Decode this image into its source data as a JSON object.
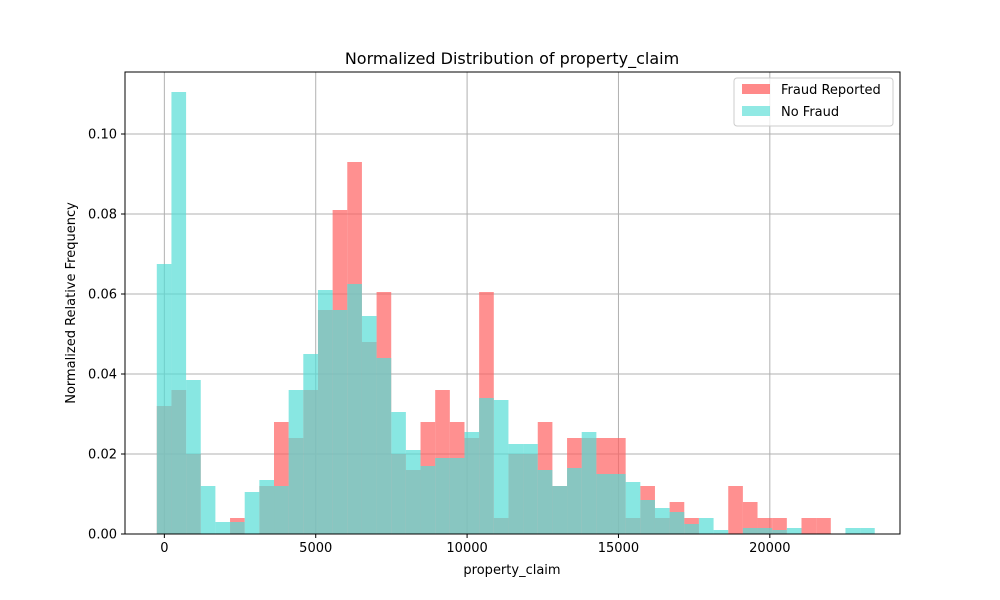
{
  "chart_data": {
    "type": "bar",
    "title": "Normalized Distribution of property_claim",
    "xlabel": "property_claim",
    "ylabel": "Normalized Relative Frequency",
    "xlim": [
      -1300,
      24300
    ],
    "ylim": [
      0,
      0.1155
    ],
    "x_ticks": [
      0,
      5000,
      10000,
      15000,
      20000
    ],
    "y_ticks": [
      0.0,
      0.02,
      0.04,
      0.06,
      0.08,
      0.1
    ],
    "x_tick_labels": [
      "0",
      "5000",
      "10000",
      "15000",
      "20000"
    ],
    "y_tick_labels": [
      "0.00",
      "0.02",
      "0.04",
      "0.06",
      "0.08",
      "0.10"
    ],
    "grid": true,
    "legend_position": "top-right",
    "colors": {
      "fraud": "#ff6161",
      "no_fraud": "#56ddd6",
      "grid": "#b0b0b0",
      "frame": "#000000"
    },
    "series": [
      {
        "name": "Fraud Reported",
        "bin_edges": [
          -250,
          234,
          718,
          1202,
          1686,
          2170,
          2654,
          3138,
          3622,
          4106,
          4590,
          5074,
          5558,
          6042,
          6526,
          7010,
          7494,
          7978,
          8462,
          8946,
          9430,
          9914,
          10398,
          10882,
          11366,
          11850,
          12334,
          12818,
          13302,
          13786,
          14270,
          14754,
          15238,
          15722,
          16206,
          16690,
          17174,
          17658,
          18142,
          18626,
          19110,
          19594,
          20078,
          20562,
          21046,
          21530,
          22014
        ],
        "values": [
          0.032,
          0.036,
          0.02,
          0,
          0,
          0.004,
          0,
          0.012,
          0.028,
          0.024,
          0.036,
          0.056,
          0.081,
          0.093,
          0.048,
          0.0605,
          0.02,
          0.016,
          0.028,
          0.036,
          0.028,
          0.024,
          0.0605,
          0.004,
          0.02,
          0.02,
          0.028,
          0.012,
          0.024,
          0.024,
          0.024,
          0.024,
          0.004,
          0.012,
          0.004,
          0.008,
          0.004,
          0,
          0,
          0.012,
          0.008,
          0.004,
          0.004,
          0,
          0.004,
          0.004
        ]
      },
      {
        "name": "No Fraud",
        "bin_edges": [
          -250,
          234,
          718,
          1202,
          1686,
          2170,
          2654,
          3138,
          3622,
          4106,
          4590,
          5074,
          5558,
          6042,
          6526,
          7010,
          7494,
          7978,
          8462,
          8946,
          9430,
          9914,
          10398,
          10882,
          11366,
          11850,
          12334,
          12818,
          13302,
          13786,
          14270,
          14754,
          15238,
          15722,
          16206,
          16690,
          17174,
          17658,
          18142,
          18626,
          19110,
          19594,
          20078,
          20562,
          21046,
          21530,
          22014,
          22498,
          22982,
          23466
        ],
        "values": [
          0.0675,
          0.1105,
          0.0385,
          0.012,
          0.003,
          0.003,
          0.0105,
          0.0135,
          0.012,
          0.036,
          0.045,
          0.061,
          0.056,
          0.0625,
          0.0545,
          0.044,
          0.0305,
          0.021,
          0.017,
          0.019,
          0.019,
          0.0255,
          0.034,
          0.0335,
          0.0225,
          0.0225,
          0.016,
          0.012,
          0.0165,
          0.0255,
          0.015,
          0.015,
          0.013,
          0.0085,
          0.0065,
          0.0055,
          0.0025,
          0.004,
          0.001,
          0,
          0.0015,
          0.0015,
          0.001,
          0.0015,
          0,
          0,
          0,
          0.0015,
          0.0015
        ]
      }
    ]
  }
}
